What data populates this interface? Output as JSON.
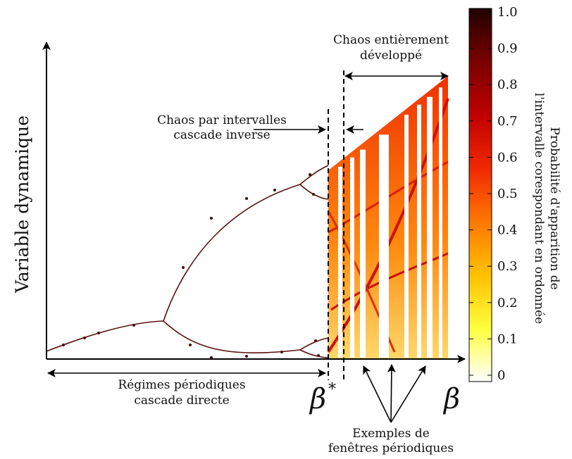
{
  "diagram": {
    "y_axis_label": "Variable dynamique",
    "x_axis_symbol": "β",
    "critical_point_symbol": "β",
    "critical_point_superscript": "*",
    "annotations": {
      "periodic": [
        "Régimes périodiques",
        "cascade directe"
      ],
      "band_chaos": [
        "Chaos par intervalles",
        "cascade inverse"
      ],
      "full_chaos": [
        "Chaos entièrement",
        "développé"
      ],
      "windows": [
        "Exemples de",
        "fenêtres périodiques"
      ]
    },
    "colorbar": {
      "label_lines": [
        "Probabilité d'apparition de",
        "l'intervalle corespondant en ordonnée"
      ],
      "ticks": [
        "1.0",
        "0.9",
        "0.8",
        "0.7",
        "0.6",
        "0.5",
        "0.4",
        "0.3",
        "0.2",
        "0.1",
        "0"
      ],
      "colors": [
        "#ffffff",
        "#ffff3c",
        "#ffc000",
        "#ff7800",
        "#f02800",
        "#c00000",
        "#7a0000",
        "#200000"
      ]
    }
  }
}
